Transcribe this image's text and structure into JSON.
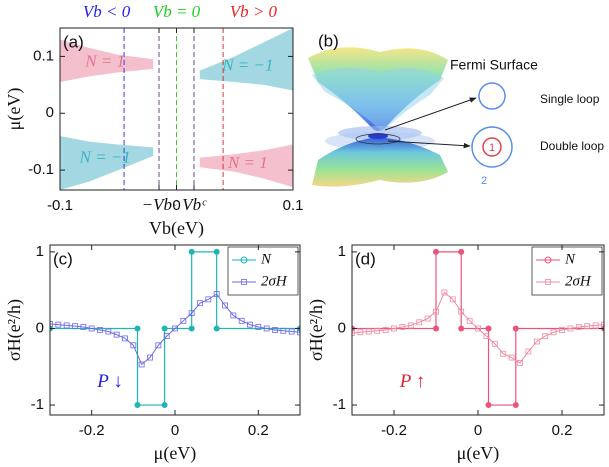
{
  "chart_data": [
    {
      "type": "area",
      "panel_label": "(a)",
      "xlabel": "Vb(eV)",
      "ylabel": "μ(eV)",
      "xlim": [
        -0.1,
        0.1
      ],
      "ylim": [
        -0.135,
        0.15
      ],
      "xticks": [
        -0.1,
        {
          "value": -0.015,
          "label": "−Vbᶜ"
        },
        0,
        {
          "value": 0.015,
          "label": "Vbᶜ"
        },
        0.1
      ],
      "yticks": [
        -0.1,
        0,
        0.1
      ],
      "headers": [
        {
          "text": "Vb < 0",
          "color": "#2222ee"
        },
        {
          "text": "Vb = 0",
          "color": "#22cc22"
        },
        {
          "text": "Vb > 0",
          "color": "#ee2222"
        }
      ],
      "vlines": [
        {
          "x": -0.045,
          "color": "#3a3ad8"
        },
        {
          "x": -0.015,
          "color": "#6a4a8a"
        },
        {
          "x": 0,
          "color": "#33cc33"
        },
        {
          "x": 0.015,
          "color": "#6a4a8a"
        },
        {
          "x": 0.04,
          "color": "#e03030"
        }
      ],
      "series": [
        {
          "name": "N = 1",
          "color": "#f5c0cd",
          "label_color": "#e8708c",
          "x": [
            -0.1,
            -0.075,
            -0.05,
            -0.02
          ],
          "upper": [
            0.13,
            0.115,
            0.103,
            0.095
          ],
          "lower": [
            0.055,
            0.065,
            0.072,
            0.078
          ]
        },
        {
          "name": "N = −1",
          "color": "#a3d8e2",
          "label_color": "#36b3c4",
          "x": [
            0.02,
            0.05,
            0.075,
            0.1
          ],
          "upper": [
            0.075,
            0.1,
            0.125,
            0.15
          ],
          "lower": [
            0.06,
            0.055,
            0.05,
            0.04
          ]
        },
        {
          "name": "N = −1",
          "color": "#a3d8e2",
          "label_color": "#36b3c4",
          "x": [
            -0.1,
            -0.075,
            -0.05,
            -0.02
          ],
          "upper": [
            -0.04,
            -0.05,
            -0.055,
            -0.06
          ],
          "lower": [
            -0.135,
            -0.12,
            -0.1,
            -0.075
          ]
        },
        {
          "name": "N = 1",
          "color": "#f5c0cd",
          "label_color": "#e8708c",
          "x": [
            0.02,
            0.05,
            0.075,
            0.1
          ],
          "upper": [
            -0.078,
            -0.072,
            -0.065,
            -0.055
          ],
          "lower": [
            -0.095,
            -0.103,
            -0.115,
            -0.13
          ]
        }
      ]
    },
    {
      "type": "line",
      "panel_label": "(c)",
      "xlabel": "μ(eV)",
      "ylabel": "σH(e²/h)",
      "xlim": [
        -0.3,
        0.3
      ],
      "ylim": [
        -1.13,
        1.09
      ],
      "xticks": [
        -0.2,
        0,
        0.2
      ],
      "yticks": [
        -1,
        0,
        1
      ],
      "legend": "upper right",
      "annotation": {
        "text": "P ↓",
        "color": "#2020e0"
      },
      "series": [
        {
          "name": "N",
          "color": "#1fb5b5",
          "marker": "circle",
          "x": [
            -0.3,
            -0.09,
            -0.09,
            -0.025,
            -0.025,
            0.04,
            0.04,
            0.1,
            0.1,
            0.3
          ],
          "values": [
            0,
            0,
            -1,
            -1,
            0,
            0,
            1,
            1,
            0,
            0
          ]
        },
        {
          "name": "2σH",
          "color": "#6a6ae8",
          "marker": "square",
          "x": [
            -0.3,
            -0.28,
            -0.26,
            -0.24,
            -0.22,
            -0.2,
            -0.18,
            -0.16,
            -0.14,
            -0.12,
            -0.1,
            -0.08,
            -0.06,
            -0.04,
            -0.02,
            0,
            0.02,
            0.04,
            0.06,
            0.08,
            0.1,
            0.12,
            0.14,
            0.16,
            0.18,
            0.2,
            0.22,
            0.24,
            0.26,
            0.28,
            0.3
          ],
          "values": [
            0.06,
            0.05,
            0.04,
            0.03,
            0.02,
            0,
            -0.02,
            -0.04,
            -0.08,
            -0.13,
            -0.22,
            -0.47,
            -0.38,
            -0.22,
            -0.1,
            0,
            0.1,
            0.2,
            0.33,
            0.38,
            0.45,
            0.3,
            0.17,
            0.1,
            0.05,
            0.02,
            0,
            -0.02,
            -0.03,
            -0.04,
            -0.05
          ]
        }
      ]
    },
    {
      "type": "line",
      "panel_label": "(d)",
      "xlabel": "μ(eV)",
      "ylabel": "σH(e²/h)",
      "xlim": [
        -0.3,
        0.3
      ],
      "ylim": [
        -1.13,
        1.09
      ],
      "xticks": [
        -0.2,
        0,
        0.2
      ],
      "yticks": [
        -1,
        0,
        1
      ],
      "legend": "upper right",
      "annotation": {
        "text": "P ↑",
        "color": "#e02030"
      },
      "series": [
        {
          "name": "N",
          "color": "#e8557a",
          "marker": "circle",
          "x": [
            -0.3,
            -0.1,
            -0.1,
            -0.04,
            -0.04,
            0.025,
            0.025,
            0.09,
            0.09,
            0.3
          ],
          "values": [
            0,
            0,
            1,
            1,
            0,
            0,
            -1,
            -1,
            0,
            0
          ]
        },
        {
          "name": "2σH",
          "color": "#f08aa0",
          "marker": "square",
          "x": [
            -0.3,
            -0.28,
            -0.26,
            -0.24,
            -0.22,
            -0.2,
            -0.18,
            -0.16,
            -0.14,
            -0.12,
            -0.1,
            -0.08,
            -0.06,
            -0.04,
            -0.02,
            0,
            0.02,
            0.04,
            0.06,
            0.08,
            0.1,
            0.12,
            0.14,
            0.16,
            0.18,
            0.2,
            0.22,
            0.24,
            0.26,
            0.28,
            0.3
          ],
          "values": [
            -0.06,
            -0.05,
            -0.04,
            -0.03,
            -0.02,
            0,
            0.02,
            0.04,
            0.08,
            0.13,
            0.22,
            0.47,
            0.38,
            0.22,
            0.1,
            0,
            -0.1,
            -0.2,
            -0.33,
            -0.38,
            -0.45,
            -0.3,
            -0.17,
            -0.1,
            -0.05,
            -0.02,
            0,
            0.02,
            0.03,
            0.04,
            0.05
          ]
        }
      ]
    }
  ],
  "panel_b": {
    "label": "(b)",
    "title": "Fermi Surface",
    "single": "Single loop",
    "double": "Double loop",
    "inner_index": "1",
    "outer_index": "2"
  }
}
